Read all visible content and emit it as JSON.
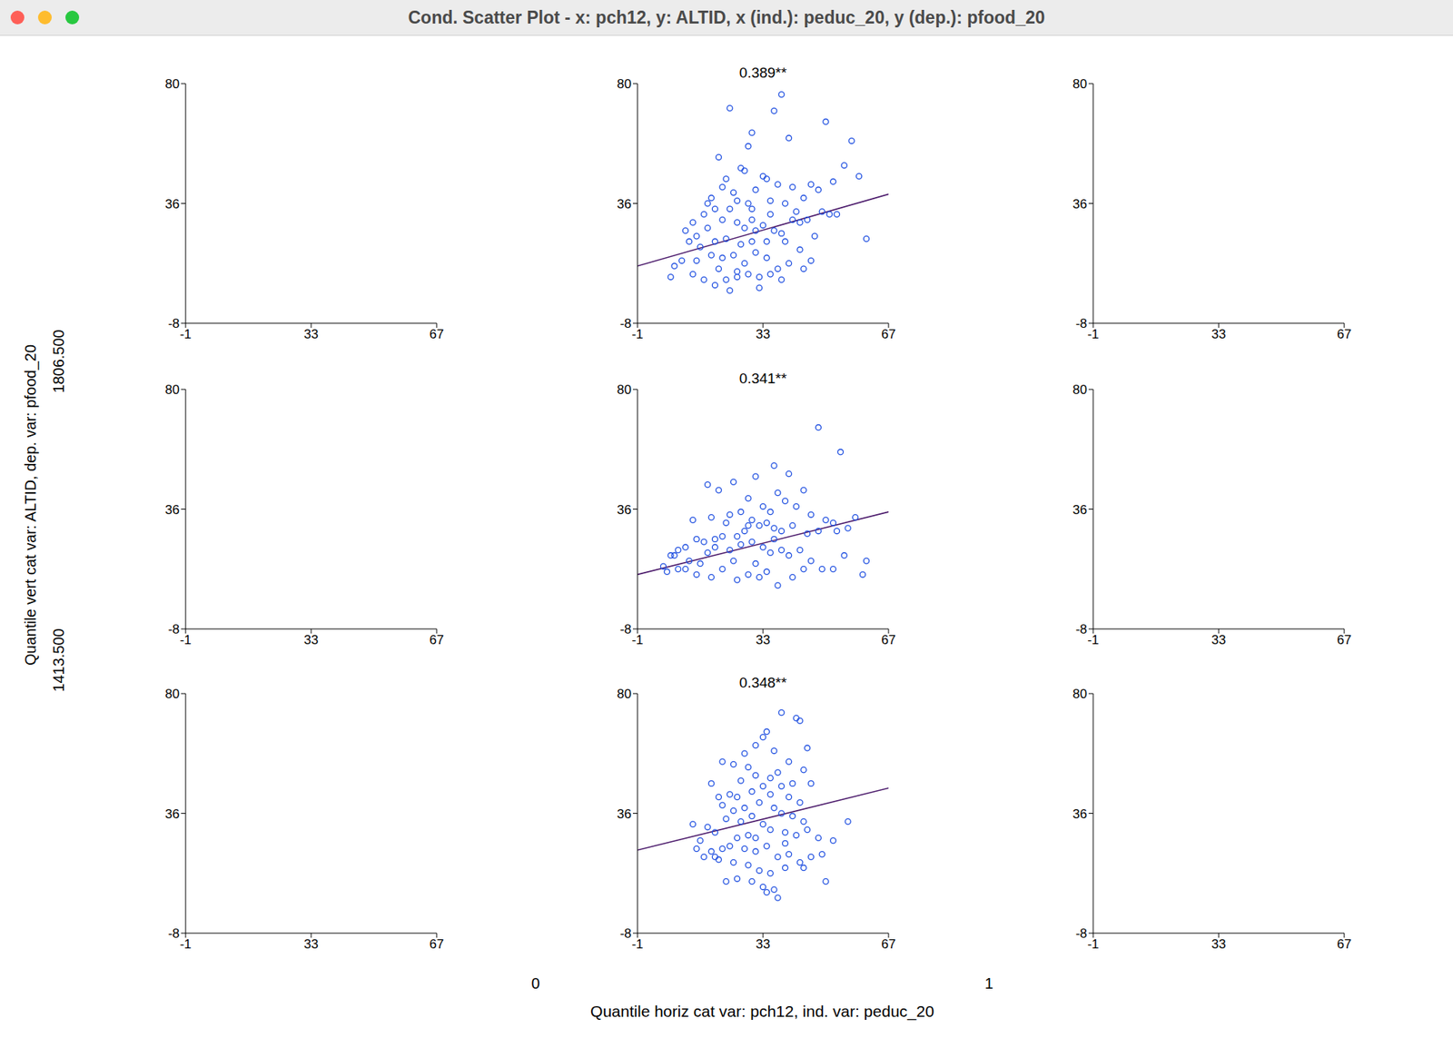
{
  "window_title": "Cond. Scatter Plot - x: pch12, y: ALTID, x (ind.): peduc_20, y (dep.): pfood_20",
  "y_label": "Quantile vert cat var: ALTID,   dep. var: pfood_20",
  "y_breaks": [
    "1806.500",
    "1413.500"
  ],
  "x_label": "Quantile horiz cat var: pch12,   ind. var: peduc_20",
  "x_breaks": [
    "0",
    "1"
  ],
  "chart_data": [
    {
      "type": "scatter",
      "points": [],
      "xlim": [
        -1,
        67
      ],
      "xticks": [
        -1,
        33,
        67
      ],
      "ylim": [
        -8,
        80
      ],
      "yticks": [
        -8,
        36,
        80
      ]
    },
    {
      "type": "scatter",
      "title": "0.389**",
      "color": "#1f4fe0",
      "marker": "open circle",
      "xlim": [
        -1,
        67
      ],
      "xticks": [
        -1,
        33,
        67
      ],
      "ylim": [
        -8,
        80
      ],
      "yticks": [
        -8,
        36,
        80
      ],
      "fit": {
        "x": [
          -1,
          67
        ],
        "y": [
          13,
          39.4
        ],
        "color": "#4b1a6b"
      },
      "points": [
        [
          24,
          71
        ],
        [
          36,
          70
        ],
        [
          38,
          76
        ],
        [
          50,
          66
        ],
        [
          30,
          62
        ],
        [
          40,
          60
        ],
        [
          57,
          59
        ],
        [
          29,
          57
        ],
        [
          21,
          53
        ],
        [
          55,
          50
        ],
        [
          59,
          46
        ],
        [
          27,
          49
        ],
        [
          28,
          48
        ],
        [
          33,
          46
        ],
        [
          34,
          45
        ],
        [
          23,
          45
        ],
        [
          46,
          43
        ],
        [
          52,
          44
        ],
        [
          48,
          41
        ],
        [
          41,
          42
        ],
        [
          37,
          43
        ],
        [
          31,
          41
        ],
        [
          25,
          40
        ],
        [
          22,
          42
        ],
        [
          19,
          38
        ],
        [
          26,
          37
        ],
        [
          29,
          36
        ],
        [
          35,
          37
        ],
        [
          39,
          36
        ],
        [
          44,
          38
        ],
        [
          49,
          33
        ],
        [
          51,
          32
        ],
        [
          53,
          32
        ],
        [
          30,
          34
        ],
        [
          24,
          34
        ],
        [
          20,
          34
        ],
        [
          17,
          32
        ],
        [
          14,
          29
        ],
        [
          12,
          26
        ],
        [
          15,
          24
        ],
        [
          18,
          27
        ],
        [
          22,
          30
        ],
        [
          26,
          29
        ],
        [
          28,
          27
        ],
        [
          31,
          26
        ],
        [
          33,
          28
        ],
        [
          36,
          26
        ],
        [
          38,
          25
        ],
        [
          41,
          30
        ],
        [
          43,
          29
        ],
        [
          45,
          30
        ],
        [
          47,
          24
        ],
        [
          39,
          22
        ],
        [
          34,
          22
        ],
        [
          30,
          22
        ],
        [
          27,
          21
        ],
        [
          23,
          23
        ],
        [
          20,
          22
        ],
        [
          16,
          20
        ],
        [
          13,
          22
        ],
        [
          11,
          15
        ],
        [
          9,
          13
        ],
        [
          15,
          15
        ],
        [
          19,
          17
        ],
        [
          22,
          16
        ],
        [
          25,
          17
        ],
        [
          28,
          14
        ],
        [
          31,
          18
        ],
        [
          34,
          16
        ],
        [
          37,
          12
        ],
        [
          40,
          14
        ],
        [
          43,
          19
        ],
        [
          46,
          15
        ],
        [
          44,
          12
        ],
        [
          35,
          10
        ],
        [
          32,
          9
        ],
        [
          29,
          10
        ],
        [
          26,
          9
        ],
        [
          23,
          8
        ],
        [
          20,
          6
        ],
        [
          17,
          8
        ],
        [
          14,
          10
        ],
        [
          8,
          9
        ],
        [
          24,
          4
        ],
        [
          32,
          5
        ],
        [
          38,
          8
        ],
        [
          61,
          23
        ],
        [
          26,
          11
        ],
        [
          21,
          12
        ],
        [
          30,
          30
        ],
        [
          35,
          32
        ],
        [
          42,
          33
        ],
        [
          18,
          36
        ]
      ]
    },
    {
      "type": "scatter",
      "points": [],
      "xlim": [
        -1,
        67
      ],
      "xticks": [
        -1,
        33,
        67
      ],
      "ylim": [
        -8,
        80
      ],
      "yticks": [
        -8,
        36,
        80
      ]
    },
    {
      "type": "scatter",
      "points": [],
      "xlim": [
        -1,
        67
      ],
      "xticks": [
        -1,
        33,
        67
      ],
      "ylim": [
        -8,
        80
      ],
      "yticks": [
        -8,
        36,
        80
      ]
    },
    {
      "type": "scatter",
      "title": "0.341**",
      "color": "#1f4fe0",
      "marker": "open circle",
      "xlim": [
        -1,
        67
      ],
      "xticks": [
        -1,
        33,
        67
      ],
      "ylim": [
        -8,
        80
      ],
      "yticks": [
        -8,
        36,
        80
      ],
      "fit": {
        "x": [
          -1,
          67
        ],
        "y": [
          12,
          35
        ],
        "color": "#4b1a6b"
      },
      "points": [
        [
          48,
          66
        ],
        [
          54,
          57
        ],
        [
          36,
          52
        ],
        [
          31,
          48
        ],
        [
          40,
          49
        ],
        [
          21,
          43
        ],
        [
          25,
          46
        ],
        [
          18,
          45
        ],
        [
          29,
          40
        ],
        [
          37,
          42
        ],
        [
          44,
          43
        ],
        [
          39,
          39
        ],
        [
          33,
          37
        ],
        [
          35,
          35
        ],
        [
          42,
          37
        ],
        [
          46,
          34
        ],
        [
          50,
          32
        ],
        [
          52,
          31
        ],
        [
          56,
          29
        ],
        [
          58,
          33
        ],
        [
          27,
          35
        ],
        [
          23,
          31
        ],
        [
          24,
          34
        ],
        [
          19,
          33
        ],
        [
          14,
          32
        ],
        [
          30,
          32
        ],
        [
          32,
          30
        ],
        [
          34,
          31
        ],
        [
          36,
          29
        ],
        [
          38,
          28
        ],
        [
          41,
          30
        ],
        [
          45,
          27
        ],
        [
          48,
          28
        ],
        [
          53,
          28
        ],
        [
          28,
          28
        ],
        [
          26,
          26
        ],
        [
          22,
          26
        ],
        [
          17,
          24
        ],
        [
          15,
          25
        ],
        [
          12,
          22
        ],
        [
          10,
          21
        ],
        [
          8,
          19
        ],
        [
          6,
          15
        ],
        [
          7,
          13
        ],
        [
          10,
          14
        ],
        [
          13,
          17
        ],
        [
          16,
          16
        ],
        [
          18,
          20
        ],
        [
          20,
          22
        ],
        [
          24,
          21
        ],
        [
          27,
          23
        ],
        [
          30,
          24
        ],
        [
          33,
          22
        ],
        [
          35,
          20
        ],
        [
          38,
          21
        ],
        [
          40,
          19
        ],
        [
          43,
          21
        ],
        [
          46,
          17
        ],
        [
          49,
          14
        ],
        [
          52,
          14
        ],
        [
          55,
          19
        ],
        [
          61,
          17
        ],
        [
          60,
          12
        ],
        [
          41,
          11
        ],
        [
          37,
          8
        ],
        [
          32,
          11
        ],
        [
          29,
          12
        ],
        [
          26,
          10
        ],
        [
          22,
          14
        ],
        [
          19,
          11
        ],
        [
          15,
          12
        ],
        [
          12,
          14
        ],
        [
          25,
          17
        ],
        [
          31,
          16
        ],
        [
          34,
          13
        ],
        [
          44,
          14
        ],
        [
          36,
          25
        ],
        [
          29,
          30
        ],
        [
          20,
          25
        ],
        [
          9,
          19
        ]
      ]
    },
    {
      "type": "scatter",
      "points": [],
      "xlim": [
        -1,
        67
      ],
      "xticks": [
        -1,
        33,
        67
      ],
      "ylim": [
        -8,
        80
      ],
      "yticks": [
        -8,
        36,
        80
      ]
    },
    {
      "type": "scatter",
      "points": [],
      "xlim": [
        -1,
        67
      ],
      "xticks": [
        -1,
        33,
        67
      ],
      "ylim": [
        -8,
        80
      ],
      "yticks": [
        -8,
        36,
        80
      ]
    },
    {
      "type": "scatter",
      "title": "0.348**",
      "color": "#1f4fe0",
      "marker": "open circle",
      "xlim": [
        -1,
        67
      ],
      "xticks": [
        -1,
        33,
        67
      ],
      "ylim": [
        -8,
        80
      ],
      "yticks": [
        -8,
        36,
        80
      ],
      "fit": {
        "x": [
          -1,
          67
        ],
        "y": [
          22.5,
          45.3
        ],
        "color": "#4b1a6b"
      },
      "points": [
        [
          38,
          73
        ],
        [
          42,
          71
        ],
        [
          43,
          70
        ],
        [
          34,
          66
        ],
        [
          33,
          64
        ],
        [
          31,
          61
        ],
        [
          45,
          60
        ],
        [
          36,
          59
        ],
        [
          28,
          58
        ],
        [
          22,
          55
        ],
        [
          25,
          54
        ],
        [
          29,
          53
        ],
        [
          40,
          55
        ],
        [
          44,
          52
        ],
        [
          37,
          51
        ],
        [
          35,
          49
        ],
        [
          31,
          50
        ],
        [
          27,
          48
        ],
        [
          41,
          47
        ],
        [
          46,
          47
        ],
        [
          19,
          47
        ],
        [
          33,
          46
        ],
        [
          38,
          46
        ],
        [
          30,
          44
        ],
        [
          24,
          43
        ],
        [
          21,
          42
        ],
        [
          26,
          42
        ],
        [
          35,
          43
        ],
        [
          40,
          42
        ],
        [
          43,
          40
        ],
        [
          32,
          40
        ],
        [
          28,
          38
        ],
        [
          25,
          37
        ],
        [
          22,
          39
        ],
        [
          36,
          38
        ],
        [
          38,
          36
        ],
        [
          41,
          35
        ],
        [
          44,
          33
        ],
        [
          30,
          35
        ],
        [
          27,
          33
        ],
        [
          23,
          34
        ],
        [
          14,
          32
        ],
        [
          18,
          31
        ],
        [
          20,
          29
        ],
        [
          33,
          32
        ],
        [
          35,
          30
        ],
        [
          39,
          29
        ],
        [
          42,
          28
        ],
        [
          45,
          30
        ],
        [
          48,
          27
        ],
        [
          52,
          26
        ],
        [
          29,
          28
        ],
        [
          26,
          27
        ],
        [
          16,
          26
        ],
        [
          15,
          23
        ],
        [
          17,
          20
        ],
        [
          19,
          22
        ],
        [
          22,
          23
        ],
        [
          24,
          24
        ],
        [
          28,
          23
        ],
        [
          31,
          22
        ],
        [
          34,
          24
        ],
        [
          37,
          20
        ],
        [
          40,
          21
        ],
        [
          43,
          18
        ],
        [
          46,
          20
        ],
        [
          49,
          21
        ],
        [
          21,
          19
        ],
        [
          25,
          18
        ],
        [
          29,
          17
        ],
        [
          32,
          15
        ],
        [
          35,
          14
        ],
        [
          39,
          16
        ],
        [
          44,
          16
        ],
        [
          50,
          11
        ],
        [
          26,
          12
        ],
        [
          30,
          11
        ],
        [
          33,
          9
        ],
        [
          36,
          8
        ],
        [
          23,
          11
        ],
        [
          37,
          5
        ],
        [
          34,
          7
        ],
        [
          20,
          20
        ],
        [
          31,
          27
        ],
        [
          39,
          25
        ],
        [
          56,
          33
        ]
      ]
    },
    {
      "type": "scatter",
      "points": [],
      "xlim": [
        -1,
        67
      ],
      "xticks": [
        -1,
        33,
        67
      ],
      "ylim": [
        -8,
        80
      ],
      "yticks": [
        -8,
        36,
        80
      ]
    }
  ]
}
